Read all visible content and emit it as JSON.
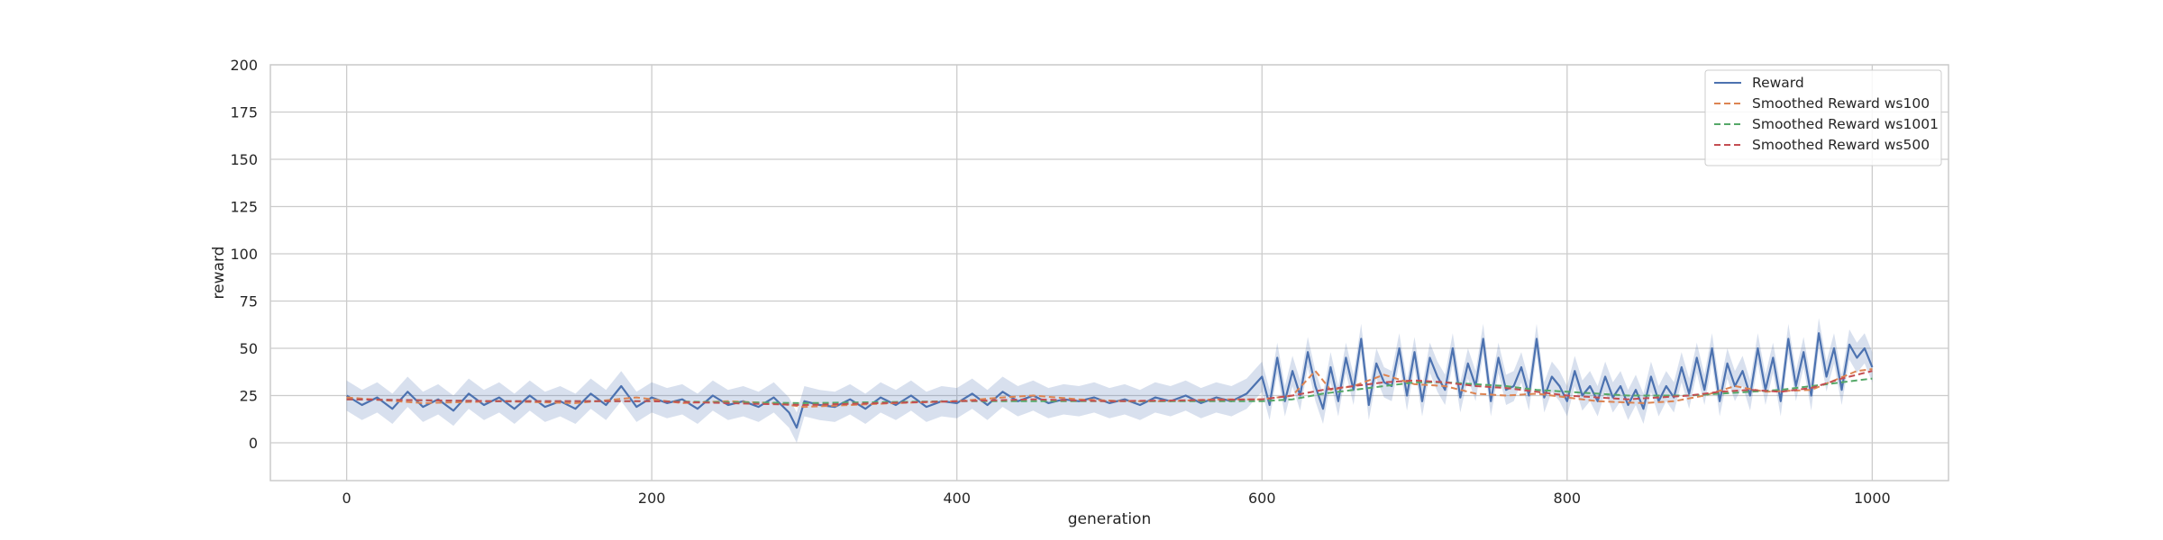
{
  "chart_data": {
    "type": "line",
    "title": "",
    "xlabel": "generation",
    "ylabel": "reward",
    "xlim": [
      -50,
      1050
    ],
    "ylim": [
      -20,
      200
    ],
    "xticks": [
      0,
      200,
      400,
      600,
      800,
      1000
    ],
    "yticks": [
      0,
      25,
      50,
      75,
      100,
      125,
      150,
      175,
      200
    ],
    "grid": true,
    "legend_position": "top-right",
    "series": [
      {
        "name": "Reward",
        "style": "solid",
        "color": "#4c72b0",
        "band_color": "#4c72b0",
        "band": "shaded confidence band",
        "x": [
          0,
          10,
          20,
          30,
          40,
          50,
          60,
          70,
          80,
          90,
          100,
          110,
          120,
          130,
          140,
          150,
          160,
          170,
          180,
          190,
          200,
          210,
          220,
          230,
          240,
          250,
          260,
          270,
          280,
          290,
          295,
          300,
          310,
          320,
          330,
          340,
          350,
          360,
          370,
          380,
          390,
          400,
          410,
          420,
          430,
          440,
          450,
          460,
          470,
          480,
          490,
          500,
          510,
          520,
          530,
          540,
          550,
          560,
          570,
          580,
          590,
          600,
          605,
          610,
          615,
          620,
          625,
          630,
          635,
          640,
          645,
          650,
          655,
          660,
          665,
          670,
          675,
          680,
          685,
          690,
          695,
          700,
          705,
          710,
          715,
          720,
          725,
          730,
          735,
          740,
          745,
          750,
          755,
          760,
          765,
          770,
          775,
          780,
          785,
          790,
          795,
          800,
          805,
          810,
          815,
          820,
          825,
          830,
          835,
          840,
          845,
          850,
          855,
          860,
          865,
          870,
          875,
          880,
          885,
          890,
          895,
          900,
          905,
          910,
          915,
          920,
          925,
          930,
          935,
          940,
          945,
          950,
          955,
          960,
          965,
          970,
          975,
          980,
          985,
          990,
          995,
          1000
        ],
        "values": [
          25,
          20,
          24,
          18,
          27,
          19,
          23,
          17,
          26,
          20,
          24,
          18,
          25,
          19,
          22,
          18,
          26,
          20,
          30,
          19,
          24,
          21,
          23,
          18,
          25,
          20,
          22,
          19,
          24,
          16,
          8,
          22,
          20,
          19,
          23,
          18,
          24,
          20,
          25,
          19,
          22,
          21,
          26,
          20,
          27,
          22,
          25,
          21,
          23,
          22,
          24,
          21,
          23,
          20,
          24,
          22,
          25,
          21,
          24,
          22,
          26,
          35,
          20,
          45,
          22,
          38,
          25,
          48,
          30,
          18,
          40,
          22,
          45,
          28,
          55,
          20,
          42,
          32,
          30,
          50,
          25,
          48,
          22,
          45,
          35,
          28,
          50,
          24,
          42,
          30,
          55,
          22,
          45,
          28,
          30,
          40,
          25,
          55,
          24,
          35,
          30,
          22,
          38,
          25,
          30,
          22,
          35,
          24,
          30,
          20,
          28,
          18,
          35,
          22,
          30,
          24,
          40,
          26,
          45,
          28,
          50,
          22,
          42,
          30,
          38,
          25,
          50,
          28,
          45,
          22,
          55,
          30,
          48,
          25,
          58,
          35,
          50,
          28,
          52,
          45,
          50,
          40
        ]
      },
      {
        "name": "Smoothed Reward ws100",
        "style": "dashed",
        "color": "#dd8452",
        "x": [
          0,
          50,
          100,
          150,
          190,
          220,
          250,
          280,
          300,
          330,
          360,
          400,
          430,
          450,
          480,
          510,
          540,
          570,
          600,
          620,
          635,
          645,
          660,
          680,
          700,
          720,
          740,
          760,
          780,
          800,
          820,
          850,
          870,
          890,
          910,
          930,
          960,
          990,
          1000
        ],
        "values": [
          24,
          21,
          22,
          21,
          24,
          21,
          22,
          21,
          19,
          20,
          21,
          22,
          24,
          25,
          23,
          22,
          22,
          23,
          23,
          25,
          38,
          28,
          30,
          36,
          31,
          30,
          26,
          25,
          26,
          24,
          22,
          21,
          22,
          25,
          30,
          27,
          28,
          38,
          39
        ]
      },
      {
        "name": "Smoothed Reward ws1001",
        "style": "dashed",
        "color": "#55a868",
        "x": [
          0,
          100,
          200,
          300,
          400,
          500,
          600,
          620,
          640,
          660,
          680,
          700,
          720,
          740,
          760,
          780,
          800,
          820,
          840,
          860,
          880,
          900,
          920,
          940,
          960,
          980,
          1000
        ],
        "values": [
          23,
          22,
          22,
          21,
          22,
          22,
          22,
          23,
          26,
          28,
          30,
          32,
          32,
          31,
          30,
          28,
          27,
          26,
          25,
          25,
          25,
          26,
          27,
          28,
          30,
          32,
          34
        ]
      },
      {
        "name": "Smoothed Reward ws500",
        "style": "dashed",
        "color": "#c44e52",
        "x": [
          0,
          100,
          200,
          300,
          400,
          450,
          500,
          600,
          620,
          640,
          660,
          680,
          700,
          720,
          740,
          760,
          780,
          800,
          820,
          840,
          860,
          880,
          900,
          920,
          940,
          960,
          980,
          1000
        ],
        "values": [
          23,
          22,
          22,
          20,
          22,
          23,
          22,
          23,
          25,
          28,
          30,
          32,
          33,
          32,
          30,
          29,
          27,
          25,
          24,
          23,
          24,
          25,
          27,
          28,
          27,
          29,
          34,
          38
        ]
      }
    ]
  }
}
